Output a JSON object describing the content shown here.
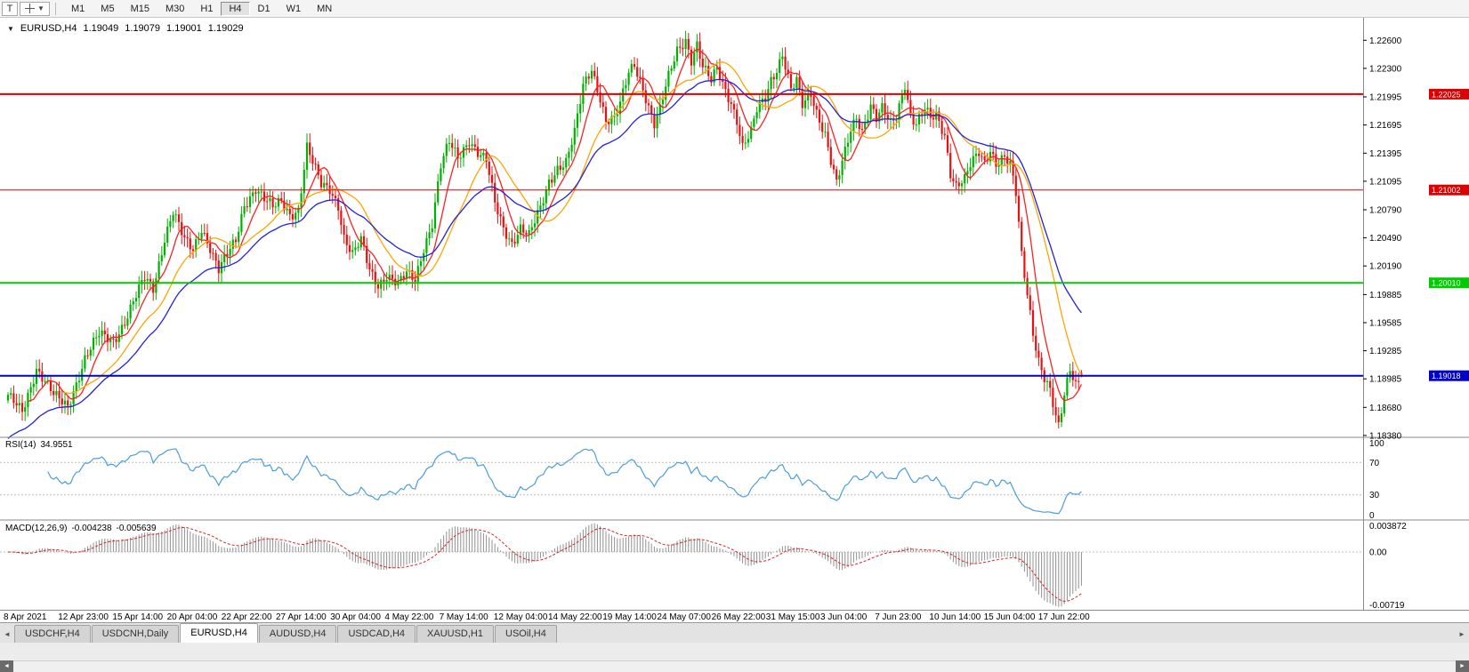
{
  "toolbar": {
    "letter_button": "T",
    "timeframes": [
      "M1",
      "M5",
      "M15",
      "M30",
      "H1",
      "H4",
      "D1",
      "W1",
      "MN"
    ],
    "active_timeframe": "H4"
  },
  "chart_header": {
    "symbol_period": "EURUSD,H4",
    "open": "1.19049",
    "high": "1.19079",
    "low": "1.19001",
    "close": "1.19029"
  },
  "rsi_panel": {
    "title": "RSI(14)",
    "value": "34.9551"
  },
  "macd_panel": {
    "title": "MACD(12,26,9)",
    "value1": "-0.004238",
    "value2": "-0.005639"
  },
  "tabs": {
    "items": [
      "USDCHF,H4",
      "USDCNH,Daily",
      "EURUSD,H4",
      "AUDUSD,H4",
      "USDCAD,H4",
      "XAUUSD,H1",
      "USOil,H4"
    ],
    "active": "EURUSD,H4"
  },
  "scroll": {
    "left_arrow": "◄",
    "right_arrow": "►"
  },
  "chart_data": {
    "type": "candlestick",
    "symbol": "EURUSD",
    "timeframe": "H4",
    "n_candles": 378,
    "last_close": 1.19029,
    "last_candle": {
      "o": 1.19049,
      "h": 1.19079,
      "l": 1.19001,
      "c": 1.19029
    },
    "y_axis": {
      "range": [
        1.1837,
        1.2284
      ],
      "ticks": [
        "1.22600",
        "1.22300",
        "1.21995",
        "1.21695",
        "1.21395",
        "1.21095",
        "1.20790",
        "1.20490",
        "1.20190",
        "1.19885",
        "1.19585",
        "1.19285",
        "1.18985",
        "1.18680",
        "1.18380"
      ]
    },
    "x_ticks": [
      "8 Apr 2021",
      "12 Apr 23:00",
      "15 Apr 14:00",
      "20 Apr 04:00",
      "22 Apr 22:00",
      "27 Apr 14:00",
      "30 Apr 04:00",
      "4 May 22:00",
      "7 May 14:00",
      "12 May 04:00",
      "14 May 22:00",
      "19 May 14:00",
      "24 May 07:00",
      "26 May 22:00",
      "31 May 15:00",
      "3 Jun 04:00",
      "7 Jun 23:00",
      "10 Jun 14:00",
      "15 Jun 04:00",
      "17 Jun 22:00"
    ],
    "horizontal_lines": [
      {
        "price": 1.22025,
        "label": "1.22025",
        "color": "#dd0000",
        "width": 2
      },
      {
        "price": 1.21002,
        "label": "1.21002",
        "color": "#dd0000",
        "width": 1
      },
      {
        "price": 1.2001,
        "label": "1.20010",
        "color": "#00cc00",
        "width": 2
      },
      {
        "price": 1.19018,
        "label": "1.19018",
        "color": "#0000cc",
        "width": 2
      }
    ],
    "colors": {
      "bull": "#00b200",
      "bear": "#e81010",
      "ma_fast": "#ff2020",
      "ma_mid": "#ffa500",
      "ma_slow": "#2222dd",
      "rsi_line": "#4a9edb",
      "macd_bars": "#909090",
      "macd_signal": "#dd2222"
    },
    "moving_averages": [
      {
        "type": "sma",
        "period": 8,
        "color_key": "ma_fast"
      },
      {
        "type": "sma",
        "period": 20,
        "color_key": "ma_mid"
      },
      {
        "type": "ema",
        "period": 35,
        "color_key": "ma_slow",
        "seed": 1.1832
      }
    ],
    "rsi": {
      "period": 14,
      "levels": [
        100,
        70,
        30,
        0
      ],
      "level_labels": [
        "100",
        "70",
        "30",
        "0"
      ],
      "dashed_levels": [
        70,
        30
      ]
    },
    "macd": {
      "fast": 12,
      "slow": 26,
      "signal": 9,
      "range": [
        -0.00719,
        0.003872
      ],
      "scale_labels": [
        "0.003872",
        "0.00",
        "-0.00719"
      ]
    },
    "price_waypoints": [
      [
        0,
        1.1878
      ],
      [
        5,
        1.1865
      ],
      [
        10,
        1.191
      ],
      [
        16,
        1.188
      ],
      [
        21,
        1.187
      ],
      [
        27,
        1.192
      ],
      [
        32,
        1.1945
      ],
      [
        37,
        1.194
      ],
      [
        41,
        1.196
      ],
      [
        44,
        1.198
      ],
      [
        48,
        1.2005
      ],
      [
        51,
        1.1995
      ],
      [
        55,
        1.205
      ],
      [
        58,
        1.2078
      ],
      [
        62,
        1.2045
      ],
      [
        65,
        1.2035
      ],
      [
        68,
        1.206
      ],
      [
        71,
        1.204
      ],
      [
        74,
        1.2015
      ],
      [
        77,
        1.203
      ],
      [
        80,
        1.2045
      ],
      [
        83,
        1.2085
      ],
      [
        87,
        1.2103
      ],
      [
        90,
        1.209
      ],
      [
        93,
        1.208
      ],
      [
        96,
        1.2088
      ],
      [
        99,
        1.2075
      ],
      [
        102,
        1.208
      ],
      [
        105,
        1.2145
      ],
      [
        108,
        1.212
      ],
      [
        110,
        1.2105
      ],
      [
        113,
        1.2102
      ],
      [
        116,
        1.2085
      ],
      [
        118,
        1.205
      ],
      [
        121,
        1.203
      ],
      [
        124,
        1.2045
      ],
      [
        127,
        1.2015
      ],
      [
        130,
        1.2
      ],
      [
        133,
        1.201
      ],
      [
        137,
        1.1998
      ],
      [
        140,
        1.201
      ],
      [
        143,
        1.2005
      ],
      [
        146,
        1.204
      ],
      [
        149,
        1.2065
      ],
      [
        152,
        1.2125
      ],
      [
        155,
        1.215
      ],
      [
        158,
        1.2135
      ],
      [
        162,
        1.2155
      ],
      [
        165,
        1.214
      ],
      [
        168,
        1.213
      ],
      [
        171,
        1.2085
      ],
      [
        174,
        1.206
      ],
      [
        177,
        1.2045
      ],
      [
        180,
        1.206
      ],
      [
        183,
        1.205
      ],
      [
        187,
        1.208
      ],
      [
        190,
        1.211
      ],
      [
        193,
        1.2125
      ],
      [
        196,
        1.213
      ],
      [
        199,
        1.216
      ],
      [
        202,
        1.221
      ],
      [
        205,
        1.223
      ],
      [
        208,
        1.22
      ],
      [
        210,
        1.2175
      ],
      [
        213,
        1.2175
      ],
      [
        215,
        1.219
      ],
      [
        218,
        1.2225
      ],
      [
        220,
        1.2235
      ],
      [
        223,
        1.221
      ],
      [
        225,
        1.219
      ],
      [
        227,
        1.217
      ],
      [
        229,
        1.2185
      ],
      [
        232,
        1.222
      ],
      [
        235,
        1.225
      ],
      [
        238,
        1.2262
      ],
      [
        240,
        1.224
      ],
      [
        242,
        1.2255
      ],
      [
        244,
        1.223
      ],
      [
        247,
        1.2215
      ],
      [
        249,
        1.223
      ],
      [
        251,
        1.2215
      ],
      [
        254,
        1.2195
      ],
      [
        256,
        1.2175
      ],
      [
        258,
        1.2145
      ],
      [
        261,
        1.216
      ],
      [
        263,
        1.2185
      ],
      [
        266,
        1.22
      ],
      [
        268,
        1.222
      ],
      [
        270,
        1.223
      ],
      [
        272,
        1.2245
      ],
      [
        275,
        1.2205
      ],
      [
        277,
        1.2215
      ],
      [
        279,
        1.219
      ],
      [
        282,
        1.2205
      ],
      [
        284,
        1.2185
      ],
      [
        287,
        1.216
      ],
      [
        289,
        1.213
      ],
      [
        291,
        1.2105
      ],
      [
        294,
        1.214
      ],
      [
        296,
        1.2165
      ],
      [
        298,
        1.218
      ],
      [
        300,
        1.2165
      ],
      [
        303,
        1.219
      ],
      [
        305,
        1.2175
      ],
      [
        307,
        1.2185
      ],
      [
        310,
        1.217
      ],
      [
        312,
        1.218
      ],
      [
        315,
        1.2215
      ],
      [
        317,
        1.218
      ],
      [
        319,
        1.217
      ],
      [
        322,
        1.2185
      ],
      [
        324,
        1.2175
      ],
      [
        326,
        1.218
      ],
      [
        329,
        1.216
      ],
      [
        331,
        1.212
      ],
      [
        333,
        1.2105
      ],
      [
        336,
        1.211
      ],
      [
        338,
        1.2125
      ],
      [
        341,
        1.214
      ],
      [
        343,
        1.213
      ],
      [
        345,
        1.2145
      ],
      [
        347,
        1.213
      ],
      [
        350,
        1.2135
      ],
      [
        352,
        1.2125
      ],
      [
        354,
        1.2095
      ],
      [
        356,
        1.203
      ],
      [
        358,
        1.199
      ],
      [
        360,
        1.195
      ],
      [
        362,
        1.192
      ],
      [
        364,
        1.19
      ],
      [
        366,
        1.1885
      ],
      [
        368,
        1.1855
      ],
      [
        369,
        1.1845
      ],
      [
        371,
        1.188
      ],
      [
        373,
        1.191
      ],
      [
        375,
        1.1895
      ],
      [
        377,
        1.19029
      ]
    ]
  }
}
